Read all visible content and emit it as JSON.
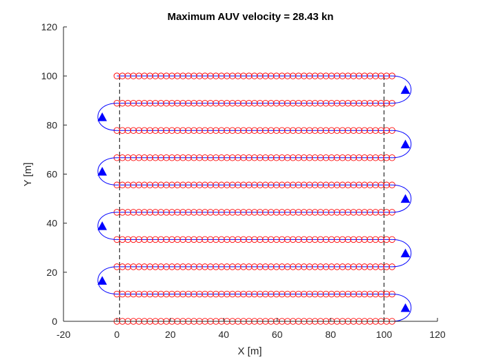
{
  "chart_data": {
    "type": "scatter",
    "title": "Maximum AUV velocity = 28.43 kn",
    "xlabel": "X [m]",
    "ylabel": "Y [m]",
    "xlim": [
      -20,
      120
    ],
    "ylim": [
      0,
      120
    ],
    "xticks": [
      "-20",
      "0",
      "20",
      "40",
      "60",
      "80",
      "100",
      "120"
    ],
    "yticks": [
      "0",
      "20",
      "40",
      "60",
      "80",
      "100",
      "120"
    ],
    "grid": false,
    "legend": "none",
    "survey_lines": {
      "y": [
        0,
        11.11,
        22.22,
        33.33,
        44.44,
        55.56,
        66.67,
        77.78,
        88.89,
        100
      ],
      "x_start": 0,
      "x_end": 103,
      "point_spacing": 2.06
    },
    "boundary_lines": {
      "x": [
        1,
        100
      ],
      "y_range": [
        0,
        100
      ]
    },
    "turn_arrows": [
      {
        "side": "right",
        "x": 108,
        "y": 5.5
      },
      {
        "side": "left",
        "x": -5.5,
        "y": 16.6
      },
      {
        "side": "right",
        "x": 108,
        "y": 27.8
      },
      {
        "side": "left",
        "x": -5.5,
        "y": 38.9
      },
      {
        "side": "right",
        "x": 108,
        "y": 50
      },
      {
        "side": "left",
        "x": -5.5,
        "y": 61.1
      },
      {
        "side": "right",
        "x": 108,
        "y": 72.2
      },
      {
        "side": "left",
        "x": -5.5,
        "y": 83.3
      },
      {
        "side": "right",
        "x": 108,
        "y": 94.4
      }
    ],
    "colors": {
      "point_edge": "#ff0000",
      "line": "#0000ff",
      "arrow": "#0000ff",
      "boundary": "#000000",
      "axis": "#262626"
    }
  }
}
